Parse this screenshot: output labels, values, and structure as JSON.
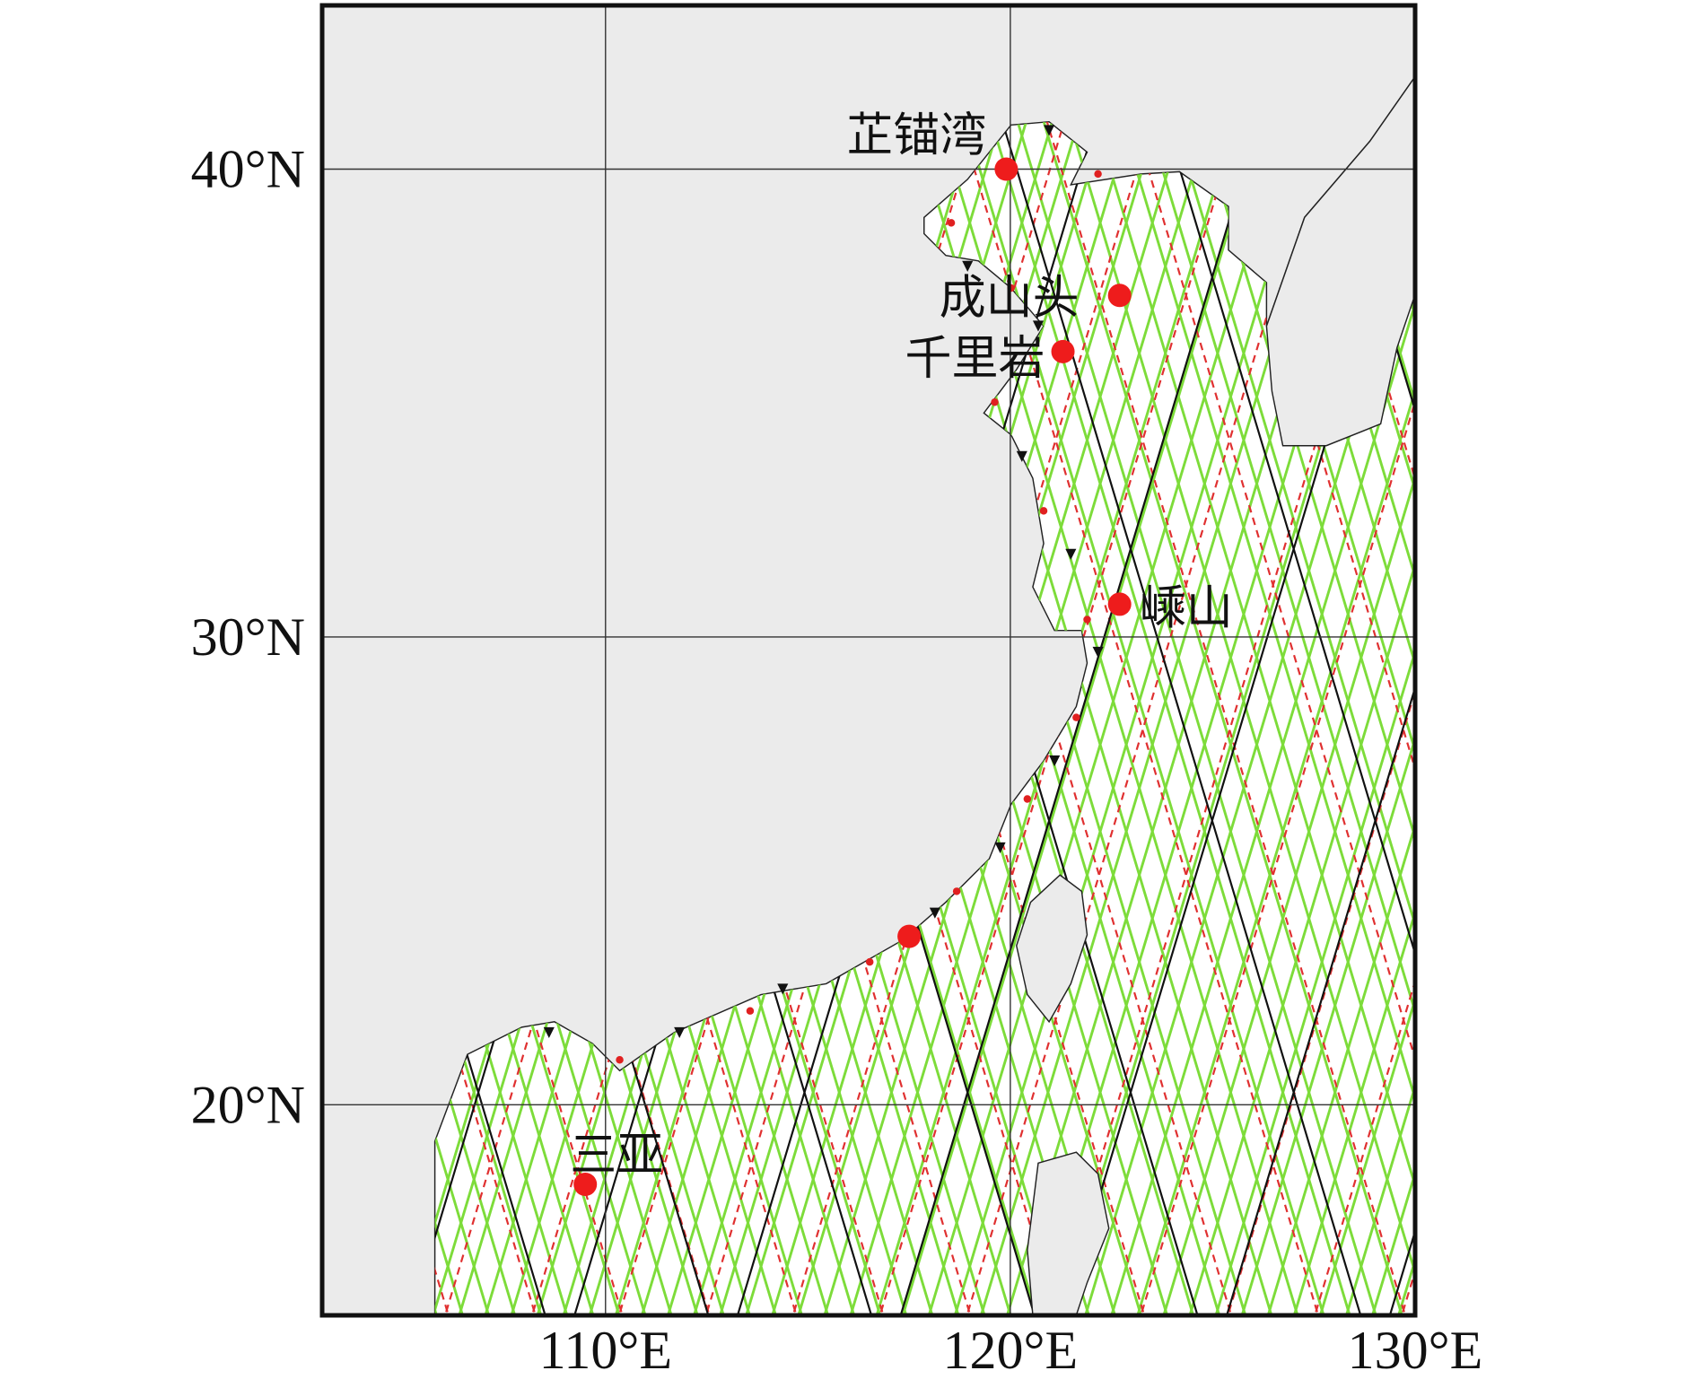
{
  "map": {
    "xlim": [
      103,
      130
    ],
    "ylim": [
      15.5,
      43.5
    ],
    "xticks": [
      {
        "value": 110,
        "label": "110°E"
      },
      {
        "value": 120,
        "label": "120°E"
      },
      {
        "value": 130,
        "label": "130°E"
      }
    ],
    "yticks": [
      {
        "value": 20,
        "label": "20°N"
      },
      {
        "value": 30,
        "label": "30°N"
      },
      {
        "value": 40,
        "label": "40°N"
      }
    ],
    "stations": [
      {
        "name": "芷锚湾",
        "lon": 119.9,
        "lat": 40.0
      },
      {
        "name": "成山头",
        "lon": 122.7,
        "lat": 37.3
      },
      {
        "name": "千里岩",
        "lon": 121.3,
        "lat": 36.1
      },
      {
        "name": "嵊山",
        "lon": 122.7,
        "lat": 30.7
      },
      {
        "name": null,
        "lon": 117.5,
        "lat": 23.6
      },
      {
        "name": "三亚",
        "lon": 109.5,
        "lat": 18.3
      }
    ]
  }
}
